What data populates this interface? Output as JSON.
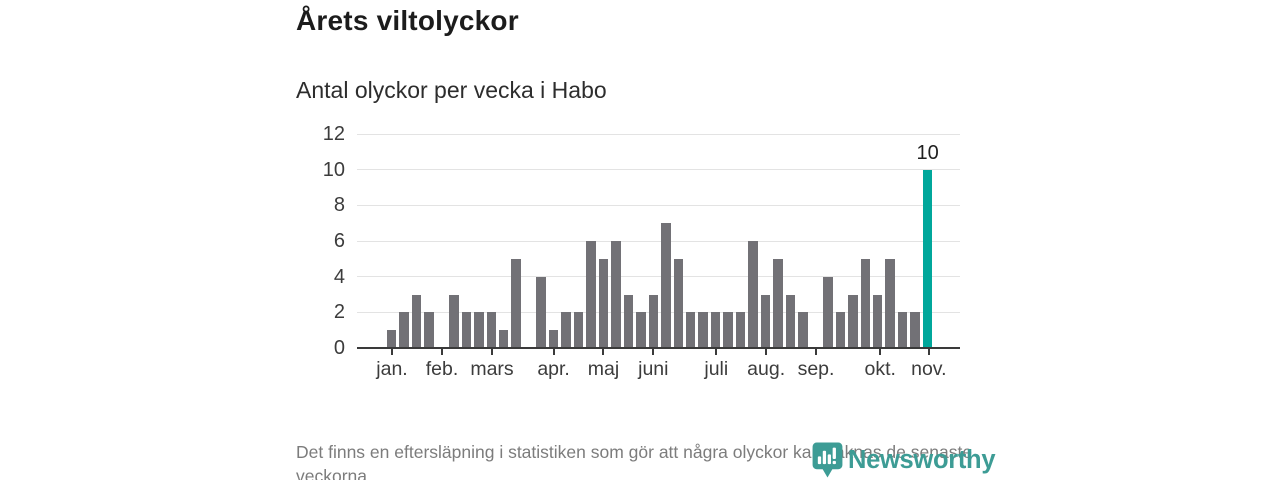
{
  "chart_data": {
    "type": "bar",
    "title": "Årets viltolyckor",
    "subtitle": "Antal olyckor per vecka i Habo",
    "xlabel": "",
    "ylabel": "",
    "values": [
      1,
      2,
      3,
      2,
      0,
      3,
      2,
      2,
      2,
      1,
      5,
      0,
      4,
      1,
      2,
      2,
      6,
      5,
      6,
      3,
      2,
      3,
      7,
      5,
      2,
      2,
      2,
      2,
      2,
      6,
      3,
      5,
      3,
      2,
      0,
      4,
      2,
      3,
      5,
      3,
      5,
      2,
      2,
      10
    ],
    "highlight_index": 43,
    "highlight_label": "10",
    "months": [
      {
        "label": "jan.",
        "pos": 0.54
      },
      {
        "label": "feb.",
        "pos": 4.55
      },
      {
        "label": "mars",
        "pos": 8.56
      },
      {
        "label": "apr.",
        "pos": 13.5
      },
      {
        "label": "maj",
        "pos": 17.5
      },
      {
        "label": "juni",
        "pos": 21.5
      },
      {
        "label": "juli",
        "pos": 26.55
      },
      {
        "label": "aug.",
        "pos": 30.55
      },
      {
        "label": "sep.",
        "pos": 34.55
      },
      {
        "label": "okt.",
        "pos": 39.7
      },
      {
        "label": "nov.",
        "pos": 43.6
      }
    ],
    "ylim": [
      0,
      12
    ],
    "yticks": [
      0,
      2,
      4,
      6,
      8,
      10,
      12
    ],
    "x_axis_range_weeks": [
      -2.27,
      46.1
    ],
    "grid": true,
    "legend": false,
    "colors": {
      "bar": "#727176",
      "highlight": "#00a79b",
      "grid": "#e3e3e3",
      "axis": "#3a3a3a"
    }
  },
  "footer": {
    "note": "Det finns en eftersläpning i statistiken som gör att några olyckor kan saknas de senaste veckorna.",
    "logo_text": "Newsworthy",
    "logo_color": "#3d9c95"
  }
}
